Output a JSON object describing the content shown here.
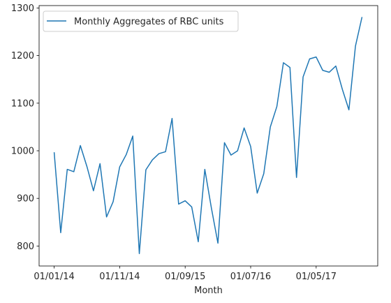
{
  "chart_data": {
    "type": "line",
    "title": "",
    "xlabel": "Month",
    "ylabel": "",
    "x_tick_labels": [
      {
        "index": 0,
        "label": "01/01/14"
      },
      {
        "index": 10,
        "label": "01/11/14"
      },
      {
        "index": 20,
        "label": "01/09/15"
      },
      {
        "index": 30,
        "label": "01/07/16"
      },
      {
        "index": 40,
        "label": "01/05/17"
      }
    ],
    "y_ticks": [
      800,
      900,
      1000,
      1100,
      1200,
      1300
    ],
    "ylim": [
      758,
      1305
    ],
    "xlim": [
      -2.3,
      49.4
    ],
    "legend": {
      "position": "top-left"
    },
    "grid": false,
    "series": [
      {
        "name": "Monthly Aggregates of RBC units",
        "color": "#1f77b4",
        "values": [
          997,
          828,
          961,
          956,
          1011,
          967,
          916,
          973,
          861,
          893,
          966,
          992,
          1031,
          784,
          960,
          981,
          994,
          998,
          1068,
          888,
          895,
          882,
          809,
          961,
          880,
          806,
          1017,
          991,
          1000,
          1048,
          1009,
          911,
          952,
          1050,
          1093,
          1185,
          1175,
          944,
          1155,
          1193,
          1197,
          1169,
          1165,
          1178,
          1129,
          1086,
          1220,
          1281
        ]
      }
    ]
  }
}
